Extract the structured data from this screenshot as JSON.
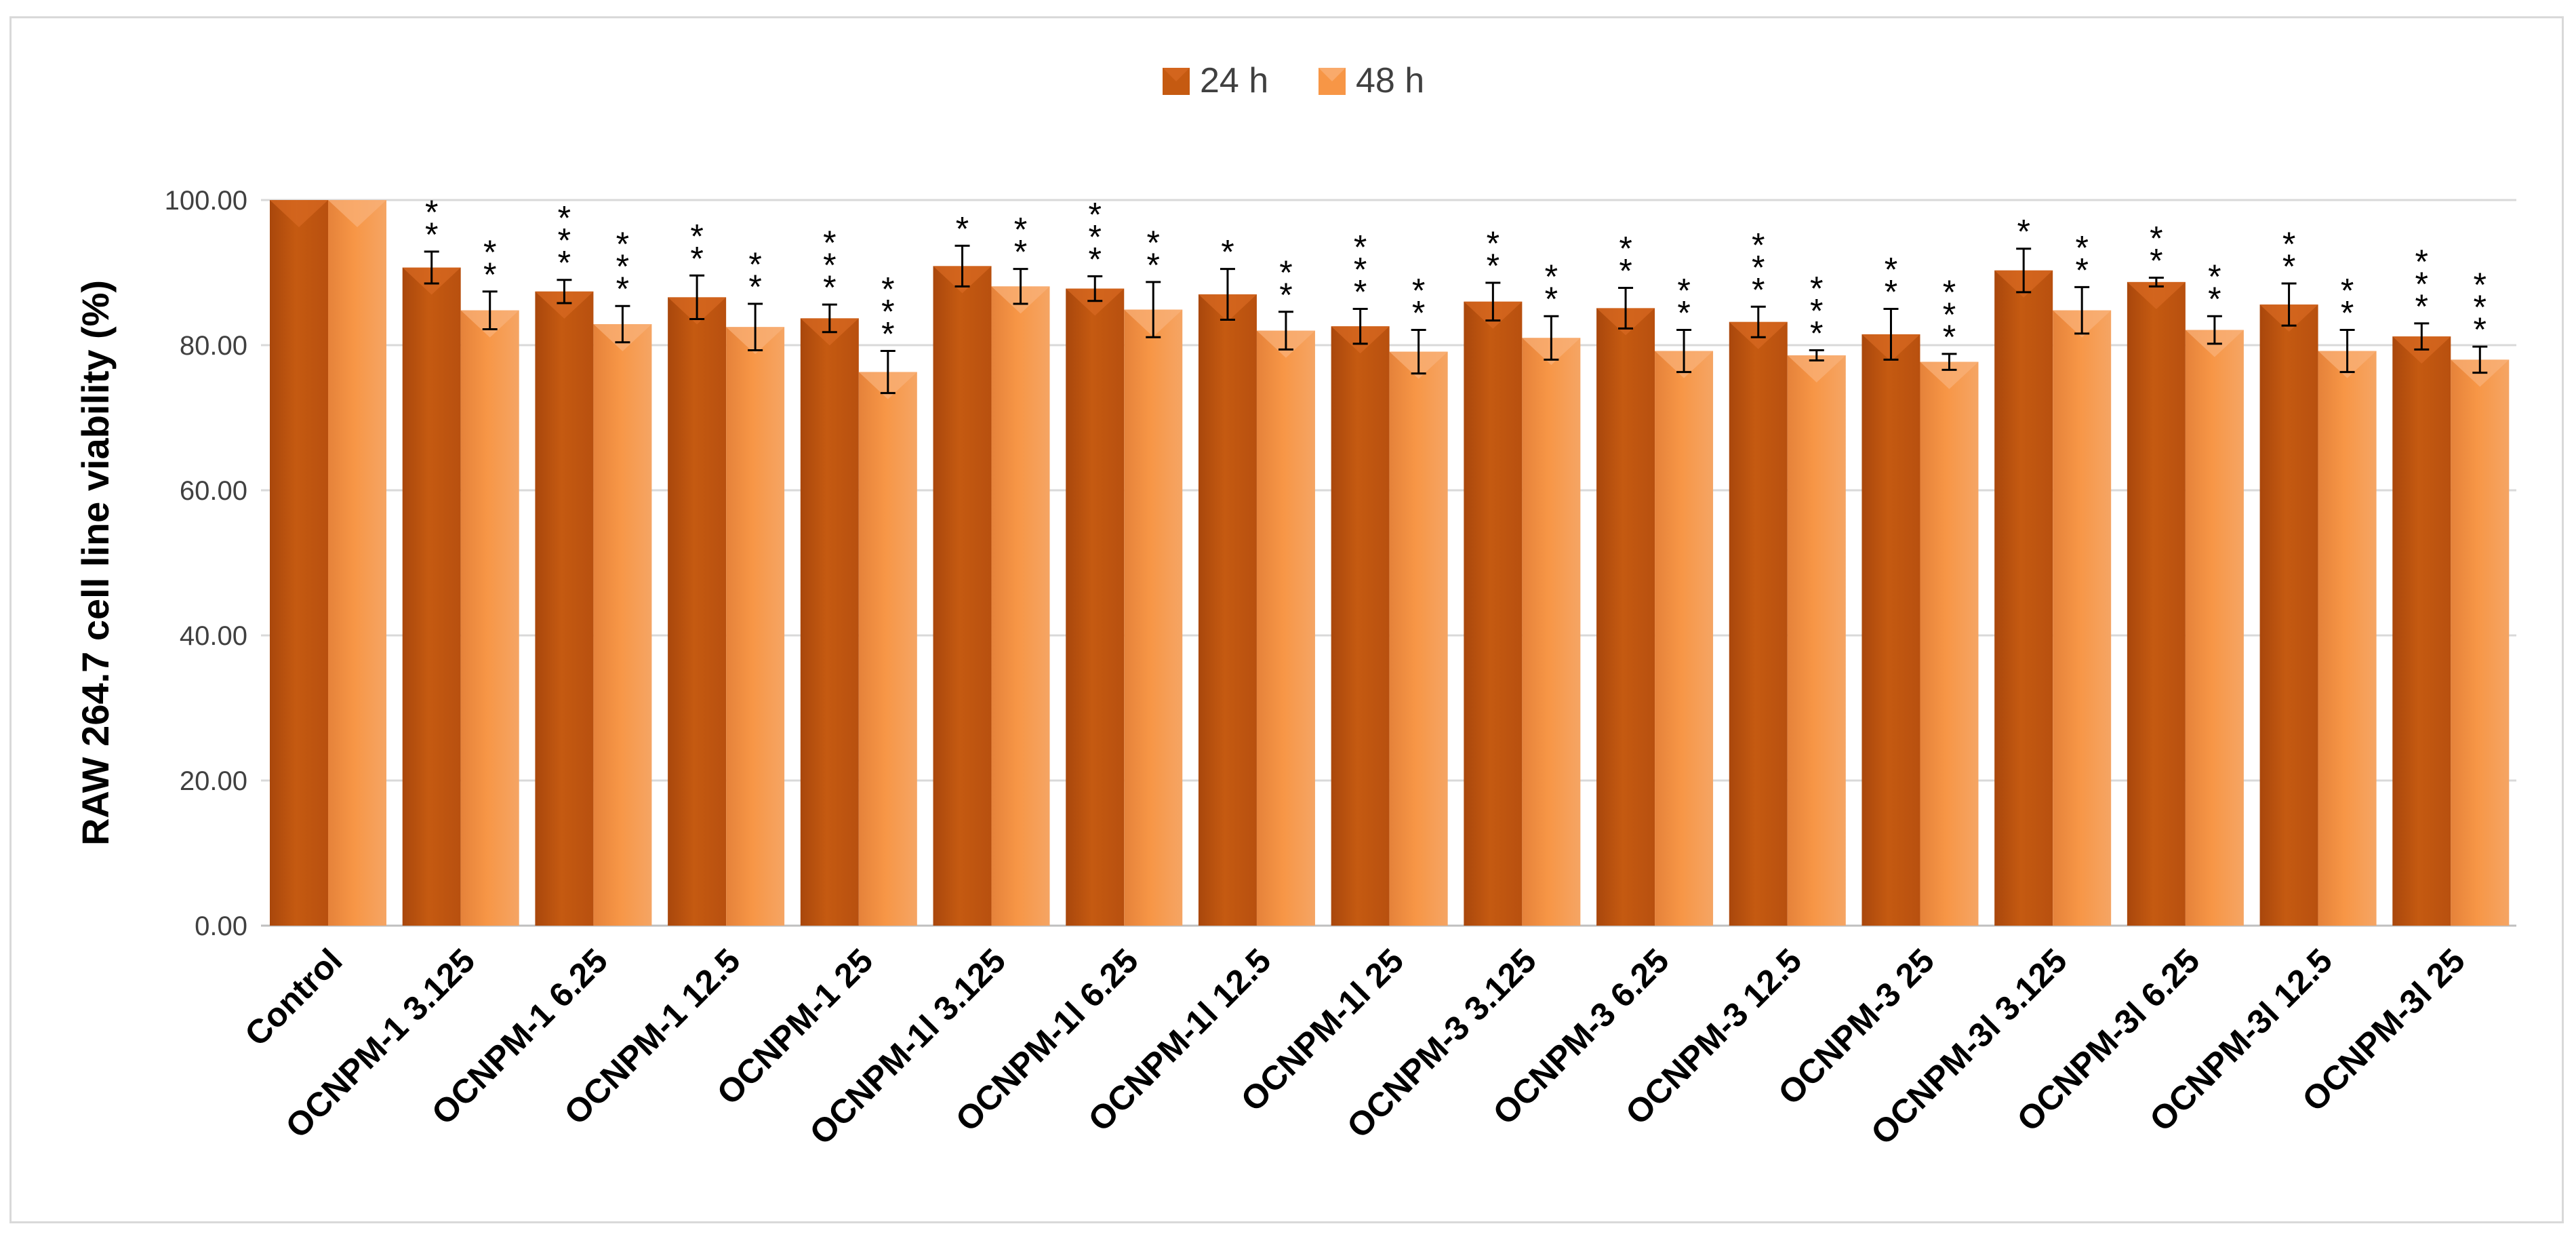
{
  "chart_data": {
    "type": "bar",
    "title": "",
    "xlabel": "",
    "ylabel": "RAW 264.7 cell line viability (%)",
    "ylim": [
      0,
      100
    ],
    "yticks": [
      "0.00",
      "20.00",
      "40.00",
      "60.00",
      "80.00",
      "100.00"
    ],
    "grid": true,
    "legend_position": "top-center",
    "categories": [
      "Control",
      "OCNPM-1 3.125",
      "OCNPM-1 6.25",
      "OCNPM-1 12.5",
      "OCNPM-1 25",
      "OCNPM-1l 3.125",
      "OCNPM-1l 6.25",
      "OCNPM-1l 12.5",
      "OCNPM-1l 25",
      "OCNPM-3 3.125",
      "OCNPM-3 6.25",
      "OCNPM-3 12.5",
      "OCNPM-3 25",
      "OCNPM-3l 3.125",
      "OCNPM-3l 6.25",
      "OCNPM-3l 12.5",
      "OCNPM-3l 25"
    ],
    "series": [
      {
        "name": "24 h",
        "color": "#c55a11",
        "values": [
          100.0,
          90.7,
          87.4,
          86.6,
          83.7,
          90.9,
          87.8,
          87.0,
          82.6,
          86.0,
          85.1,
          83.2,
          81.5,
          90.3,
          88.7,
          85.6,
          81.2
        ],
        "errors": [
          0,
          2.2,
          1.6,
          3.0,
          1.9,
          2.8,
          1.7,
          3.5,
          2.4,
          2.6,
          2.8,
          2.1,
          3.5,
          3.0,
          0.6,
          2.9,
          1.8
        ],
        "significance": [
          "",
          "**",
          "***",
          "**",
          "***",
          "*",
          "***",
          "*",
          "***",
          "**",
          "**",
          "***",
          "**",
          "*",
          "**",
          "**",
          "***"
        ]
      },
      {
        "name": "48 h",
        "color": "#f79646",
        "values": [
          100.0,
          84.8,
          82.9,
          82.5,
          76.3,
          88.1,
          84.9,
          82.0,
          79.1,
          81.0,
          79.2,
          78.6,
          77.7,
          84.8,
          82.1,
          79.2,
          78.0
        ],
        "errors": [
          0,
          2.6,
          2.5,
          3.2,
          2.9,
          2.4,
          3.8,
          2.6,
          3.0,
          3.0,
          2.9,
          0.7,
          1.1,
          3.2,
          1.9,
          2.9,
          1.8
        ],
        "significance": [
          "",
          "**",
          "***",
          "**",
          "***",
          "**",
          "**",
          "**",
          "**",
          "**",
          "**",
          "***",
          "***",
          "**",
          "**",
          "**",
          "***"
        ]
      }
    ]
  }
}
